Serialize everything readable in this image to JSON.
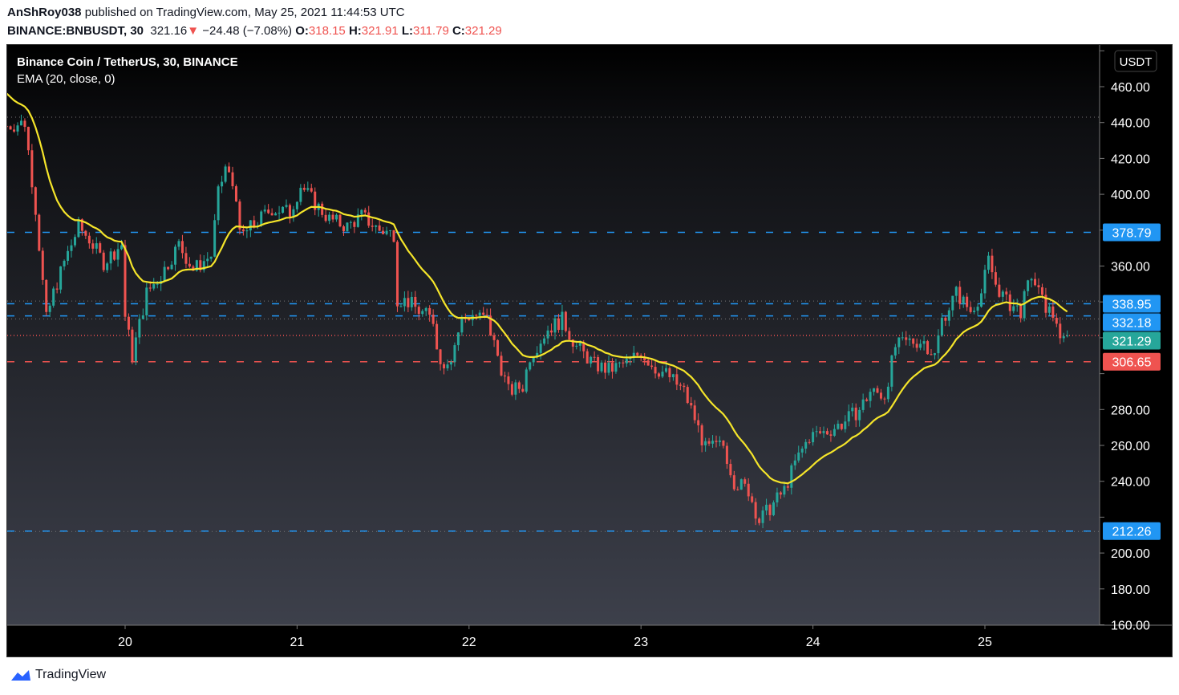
{
  "header": {
    "author": "AnShRoy038",
    "published_text": "published on TradingView.com, May 25, 2021 11:44:53 UTC",
    "symbol": "BINANCE:BNBUSDT, 30",
    "last": "321.16",
    "change": "−24.48 (−7.08%)",
    "o_label": "O:",
    "o": "318.15",
    "h_label": "H:",
    "h": "321.91",
    "l_label": "L:",
    "l": "311.79",
    "c_label": "C:",
    "c": "321.29"
  },
  "legend": {
    "title": "Binance Coin / TetherUS, 30, BINANCE",
    "indicator": "EMA (20, close, 0)"
  },
  "currency": "USDT",
  "footer": {
    "brand": "TradingView"
  },
  "colors": {
    "up": "#26a69a",
    "down": "#ef5350",
    "ema": "#f5e52a",
    "level_blue": "#2196f3",
    "level_red": "#ef5350"
  },
  "chart_data": {
    "type": "candlestick",
    "interval": "30 minutes",
    "ylim": [
      160,
      480
    ],
    "yticks": [
      160,
      180,
      200,
      220,
      240,
      260,
      280,
      300,
      320,
      340,
      360,
      380,
      400,
      420,
      440,
      460,
      480
    ],
    "xticks": [
      {
        "label": "20",
        "date": "2021-05-20T00:00"
      },
      {
        "label": "21",
        "date": "2021-05-21T00:00"
      },
      {
        "label": "22",
        "date": "2021-05-22T00:00"
      },
      {
        "label": "23",
        "date": "2021-05-23T00:00"
      },
      {
        "label": "24",
        "date": "2021-05-24T00:00"
      },
      {
        "label": "25",
        "date": "2021-05-25T00:00"
      }
    ],
    "ema": {
      "period": 20,
      "source": "close",
      "start_value": 458
    },
    "approx_close_path": [
      [
        "2021-05-19T07:30",
        438
      ],
      [
        "2021-05-19T10:00",
        440
      ],
      [
        "2021-05-19T11:30",
        392
      ],
      [
        "2021-05-19T13:00",
        330
      ],
      [
        "2021-05-19T14:00",
        345
      ],
      [
        "2021-05-19T15:30",
        362
      ],
      [
        "2021-05-19T17:30",
        382
      ],
      [
        "2021-05-19T19:00",
        375
      ],
      [
        "2021-05-19T21:00",
        362
      ],
      [
        "2021-05-19T23:30",
        372
      ],
      [
        "2021-05-20T00:00",
        332
      ],
      [
        "2021-05-20T01:00",
        310
      ],
      [
        "2021-05-20T03:00",
        345
      ],
      [
        "2021-05-20T05:00",
        355
      ],
      [
        "2021-05-20T07:30",
        372
      ],
      [
        "2021-05-20T09:30",
        358
      ],
      [
        "2021-05-20T12:00",
        366
      ],
      [
        "2021-05-20T13:00",
        400
      ],
      [
        "2021-05-20T14:00",
        415
      ],
      [
        "2021-05-20T15:30",
        400
      ],
      [
        "2021-05-20T16:00",
        376
      ],
      [
        "2021-05-20T18:30",
        385
      ],
      [
        "2021-05-20T20:30",
        392
      ],
      [
        "2021-05-20T23:00",
        390
      ],
      [
        "2021-05-21T00:30",
        405
      ],
      [
        "2021-05-21T02:30",
        395
      ],
      [
        "2021-05-21T04:30",
        386
      ],
      [
        "2021-05-21T07:00",
        382
      ],
      [
        "2021-05-21T09:00",
        388
      ],
      [
        "2021-05-21T11:30",
        380
      ],
      [
        "2021-05-21T13:30",
        378
      ],
      [
        "2021-05-21T14:00",
        342
      ],
      [
        "2021-05-21T15:30",
        340
      ],
      [
        "2021-05-21T17:00",
        335
      ],
      [
        "2021-05-21T19:00",
        330
      ],
      [
        "2021-05-21T20:00",
        305
      ],
      [
        "2021-05-21T21:30",
        310
      ],
      [
        "2021-05-21T23:00",
        330
      ],
      [
        "2021-05-22T00:30",
        333
      ],
      [
        "2021-05-22T02:30",
        330
      ],
      [
        "2021-05-22T04:00",
        310
      ],
      [
        "2021-05-22T05:30",
        290
      ],
      [
        "2021-05-22T07:30",
        293
      ],
      [
        "2021-05-22T08:30",
        310
      ],
      [
        "2021-05-22T11:00",
        325
      ],
      [
        "2021-05-22T13:00",
        330
      ],
      [
        "2021-05-22T15:00",
        315
      ],
      [
        "2021-05-22T17:30",
        305
      ],
      [
        "2021-05-22T19:30",
        302
      ],
      [
        "2021-05-22T22:00",
        306
      ],
      [
        "2021-05-23T00:00",
        312
      ],
      [
        "2021-05-23T02:00",
        303
      ],
      [
        "2021-05-23T03:30",
        300
      ],
      [
        "2021-05-23T06:00",
        290
      ],
      [
        "2021-05-23T07:30",
        275
      ],
      [
        "2021-05-23T09:00",
        258
      ],
      [
        "2021-05-23T11:30",
        260
      ],
      [
        "2021-05-23T13:00",
        240
      ],
      [
        "2021-05-23T15:00",
        235
      ],
      [
        "2021-05-23T16:30",
        218
      ],
      [
        "2021-05-23T18:00",
        225
      ],
      [
        "2021-05-23T20:00",
        235
      ],
      [
        "2021-05-23T21:30",
        250
      ],
      [
        "2021-05-23T23:30",
        265
      ],
      [
        "2021-05-24T02:00",
        268
      ],
      [
        "2021-05-24T04:00",
        272
      ],
      [
        "2021-05-24T06:30",
        280
      ],
      [
        "2021-05-24T08:00",
        290
      ],
      [
        "2021-05-24T10:00",
        288
      ],
      [
        "2021-05-24T11:30",
        315
      ],
      [
        "2021-05-24T13:30",
        318
      ],
      [
        "2021-05-24T15:30",
        318
      ],
      [
        "2021-05-24T17:00",
        310
      ],
      [
        "2021-05-24T18:00",
        330
      ],
      [
        "2021-05-24T20:00",
        345
      ],
      [
        "2021-05-24T22:00",
        335
      ],
      [
        "2021-05-24T23:30",
        345
      ],
      [
        "2021-05-25T00:30",
        363
      ],
      [
        "2021-05-25T01:30",
        350
      ],
      [
        "2021-05-25T03:00",
        340
      ],
      [
        "2021-05-25T05:00",
        335
      ],
      [
        "2021-05-25T06:30",
        355
      ],
      [
        "2021-05-25T08:00",
        340
      ],
      [
        "2021-05-25T10:00",
        330
      ],
      [
        "2021-05-25T10:30",
        316
      ],
      [
        "2021-05-25T11:30",
        321.29
      ]
    ],
    "levels": [
      {
        "price": 378.79,
        "label": "378.79",
        "style": "dashed",
        "color": "#2196f3"
      },
      {
        "price": 338.95,
        "label": "338.95",
        "style": "dashed",
        "color": "#2196f3"
      },
      {
        "price": 332.18,
        "label": "332.18",
        "style": "dashed",
        "color": "#2196f3"
      },
      {
        "price": 321.29,
        "label": "321.29",
        "style": "dotted",
        "color": "#26a69a",
        "line_color": "#ef5350"
      },
      {
        "price": 306.65,
        "label": "306.65",
        "style": "dashed",
        "color": "#ef5350"
      },
      {
        "price": 212.26,
        "label": "212.26",
        "style": "dashed",
        "color": "#2196f3"
      }
    ]
  }
}
